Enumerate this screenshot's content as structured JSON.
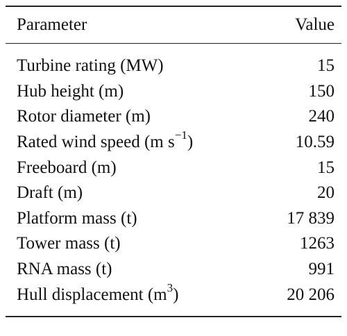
{
  "table": {
    "header": {
      "parameter": "Parameter",
      "value": "Value"
    },
    "rows": [
      {
        "pre": "Turbine rating (MW)",
        "sup": "",
        "post": "",
        "value": "15"
      },
      {
        "pre": "Hub height (m)",
        "sup": "",
        "post": "",
        "value": "150"
      },
      {
        "pre": "Rotor diameter (m)",
        "sup": "",
        "post": "",
        "value": "240"
      },
      {
        "pre": "Rated wind speed (m s",
        "sup": "−1",
        "post": ")",
        "value": "10.59"
      },
      {
        "pre": "Freeboard (m)",
        "sup": "",
        "post": "",
        "value": "15"
      },
      {
        "pre": "Draft (m)",
        "sup": "",
        "post": "",
        "value": "20"
      },
      {
        "pre": "Platform mass (t)",
        "sup": "",
        "post": "",
        "value": "17 839"
      },
      {
        "pre": "Tower mass (t)",
        "sup": "",
        "post": "",
        "value": "1263"
      },
      {
        "pre": "RNA mass (t)",
        "sup": "",
        "post": "",
        "value": "991"
      },
      {
        "pre": "Hull displacement (m",
        "sup": "3",
        "post": ")",
        "value": "20 206"
      }
    ]
  }
}
